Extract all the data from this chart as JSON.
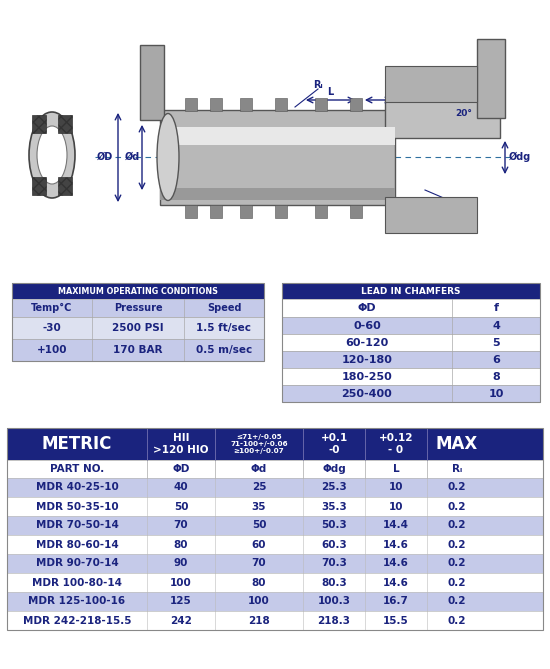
{
  "dark_blue": "#1a237e",
  "light_blue": "#c5cae9",
  "lighter_blue": "#dde1f0",
  "white": "#ffffff",
  "max_op_title": "MAXIMUM OPERATING CONDITIONS",
  "max_op_headers": [
    "Temp°C",
    "Pressure",
    "Speed"
  ],
  "max_op_rows": [
    [
      "-30",
      "2500 PSI",
      "1.5 ft/sec"
    ],
    [
      "+100",
      "170 BAR",
      "0.5 m/sec"
    ]
  ],
  "chamfer_title": "LEAD IN CHAMFERS",
  "chamfer_headers": [
    "ΦD",
    "f"
  ],
  "chamfer_rows": [
    [
      "0-60",
      "4"
    ],
    [
      "60-120",
      "5"
    ],
    [
      "120-180",
      "6"
    ],
    [
      "180-250",
      "8"
    ],
    [
      "250-400",
      "10"
    ]
  ],
  "metric_header": "METRIC",
  "metric_col2": "HII\n>120 HIO",
  "metric_col3": "≤71+/-0.05\n71-100+/-0.06\n≥100+/-0.07",
  "metric_col4": "+0.1\n-0",
  "metric_col5": "+0.12\n- 0",
  "metric_col6": "MAX",
  "part_headers": [
    "PART NO.",
    "ΦD",
    "Φd",
    "Φdg",
    "L",
    "Rₗ"
  ],
  "parts": [
    [
      "MDR 40-25-10",
      "40",
      "25",
      "25.3",
      "10",
      "0.2"
    ],
    [
      "MDR 50-35-10",
      "50",
      "35",
      "35.3",
      "10",
      "0.2"
    ],
    [
      "MDR 70-50-14",
      "70",
      "50",
      "50.3",
      "14.4",
      "0.2"
    ],
    [
      "MDR 80-60-14",
      "80",
      "60",
      "60.3",
      "14.6",
      "0.2"
    ],
    [
      "MDR 90-70-14",
      "90",
      "70",
      "70.3",
      "14.6",
      "0.2"
    ],
    [
      "MDR 100-80-14",
      "100",
      "80",
      "80.3",
      "14.6",
      "0.2"
    ],
    [
      "MDR 125-100-16",
      "125",
      "100",
      "100.3",
      "16.7",
      "0.2"
    ],
    [
      "MDR 242-218-15.5",
      "242",
      "218",
      "218.3",
      "15.5",
      "0.2"
    ]
  ]
}
